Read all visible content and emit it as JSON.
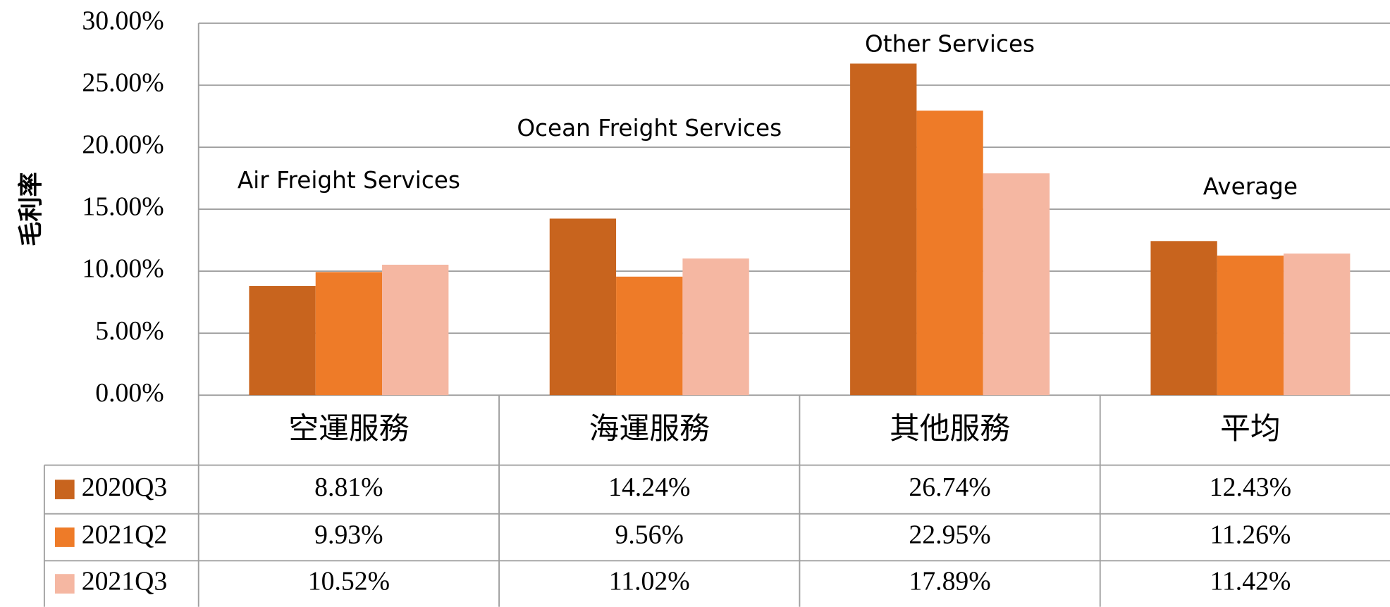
{
  "chart_data": {
    "type": "bar",
    "y_label": "毛利率",
    "categories": [
      "空運服務",
      "海運服務",
      "其他服務",
      "平均"
    ],
    "annotations": [
      "Air Freight Services",
      "Ocean Freight Services",
      "Other Services",
      "Average"
    ],
    "series": [
      {
        "name": "2020Q3",
        "color": "#c8641e",
        "values": [
          8.81,
          14.24,
          26.74,
          12.43
        ],
        "value_labels": [
          "8.81%",
          "14.24%",
          "26.74%",
          "12.43%"
        ]
      },
      {
        "name": "2021Q2",
        "color": "#ee7b28",
        "values": [
          9.93,
          9.56,
          22.95,
          11.26
        ],
        "value_labels": [
          "9.93%",
          "9.56%",
          "22.95%",
          "11.26%"
        ]
      },
      {
        "name": "2021Q3",
        "color": "#f5b7a2",
        "values": [
          10.52,
          11.02,
          17.89,
          11.42
        ],
        "value_labels": [
          "10.52%",
          "11.02%",
          "17.89%",
          "11.42%"
        ]
      }
    ],
    "ylim": [
      0,
      30
    ],
    "yticks": [
      {
        "value": 0,
        "label": "0.00%"
      },
      {
        "value": 5,
        "label": "5.00%"
      },
      {
        "value": 10,
        "label": "10.00%"
      },
      {
        "value": 15,
        "label": "15.00%"
      },
      {
        "value": 20,
        "label": "20.00%"
      },
      {
        "value": 25,
        "label": "25.00%"
      },
      {
        "value": 30,
        "label": "30.00%"
      }
    ],
    "grid": true
  }
}
